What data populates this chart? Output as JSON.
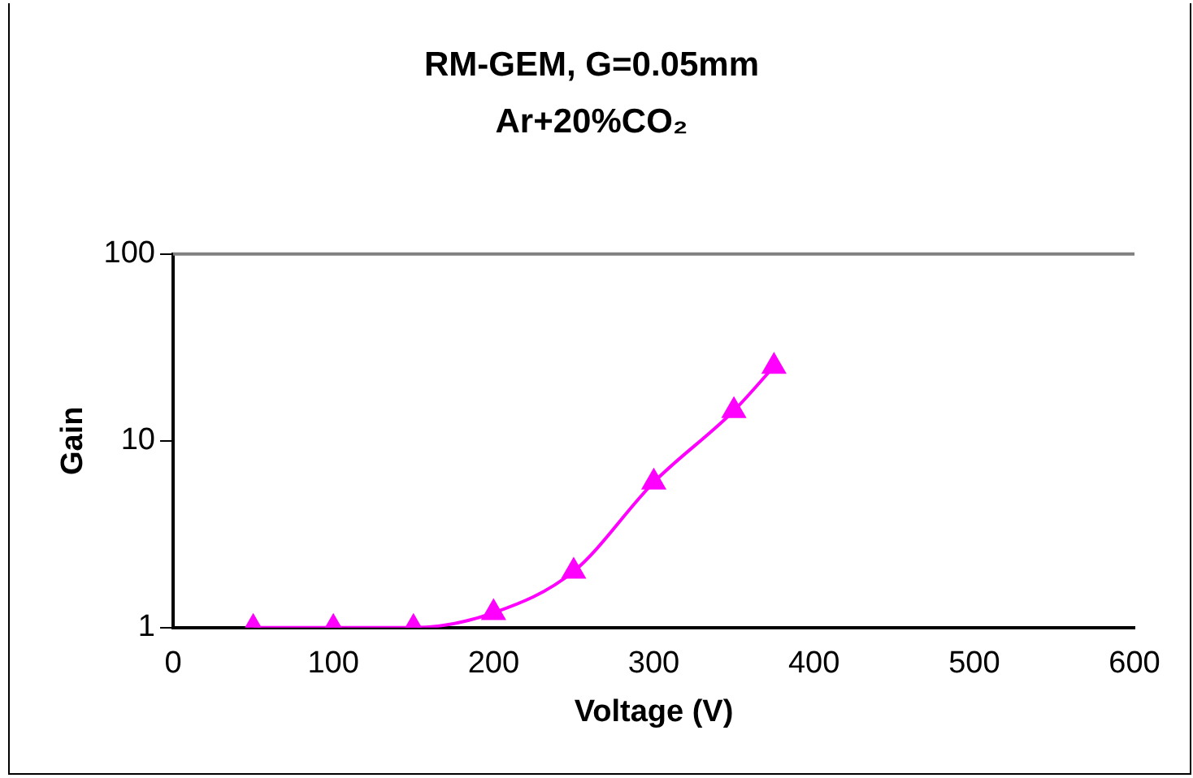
{
  "chart_data": {
    "type": "line",
    "title": "RM-GEM, G=0.05mm",
    "subtitle": "Ar+20%CO₂",
    "xlabel": "Voltage (V)",
    "ylabel": "Gain",
    "x": [
      50,
      100,
      150,
      200,
      250,
      300,
      350,
      375
    ],
    "series": [
      {
        "color": "#ff00ff",
        "values": [
          1,
          1,
          1,
          1.2,
          2,
          6,
          14.5,
          25
        ]
      }
    ],
    "xlim": [
      0,
      600
    ],
    "xticks": [
      0,
      100,
      200,
      300,
      400,
      500,
      600
    ],
    "ylim": [
      1,
      100
    ],
    "yticks": [
      1,
      10,
      100
    ],
    "log": "y",
    "grid": false,
    "legend": false,
    "marker": "triangle"
  }
}
